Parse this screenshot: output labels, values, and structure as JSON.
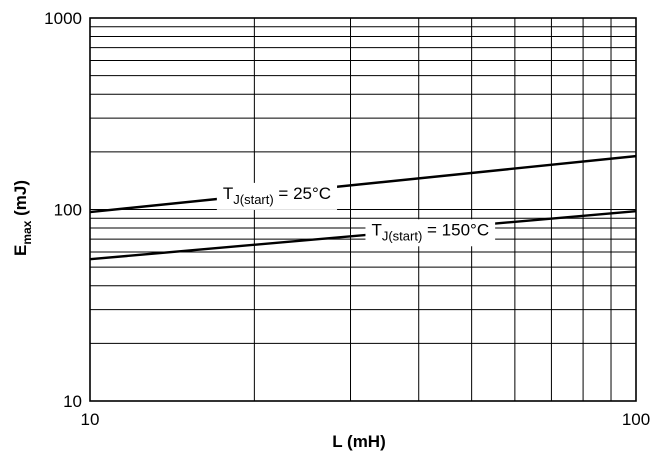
{
  "chart_data": {
    "type": "line",
    "xscale": "log",
    "yscale": "log",
    "xlim": [
      10,
      100
    ],
    "ylim": [
      10,
      1000
    ],
    "xlabel": "L (mH)",
    "ylabel_main": "E",
    "ylabel_sub": "max",
    "ylabel_unit": " (mJ)",
    "x_ticks": [
      {
        "value": 10,
        "label": "10"
      },
      {
        "value": 100,
        "label": "100"
      }
    ],
    "y_ticks": [
      {
        "value": 10,
        "label": "10"
      },
      {
        "value": 100,
        "label": "100"
      },
      {
        "value": 1000,
        "label": "1000"
      }
    ],
    "grid": true,
    "series": [
      {
        "label_main": "T",
        "label_sub": "J(start)",
        "label_rest": " = 25°C",
        "x": [
          10,
          100
        ],
        "y": [
          97,
          190
        ]
      },
      {
        "label_main": "T",
        "label_sub": "J(start)",
        "label_rest": " = 150°C",
        "x": [
          10,
          100
        ],
        "y": [
          55,
          98
        ]
      }
    ]
  }
}
